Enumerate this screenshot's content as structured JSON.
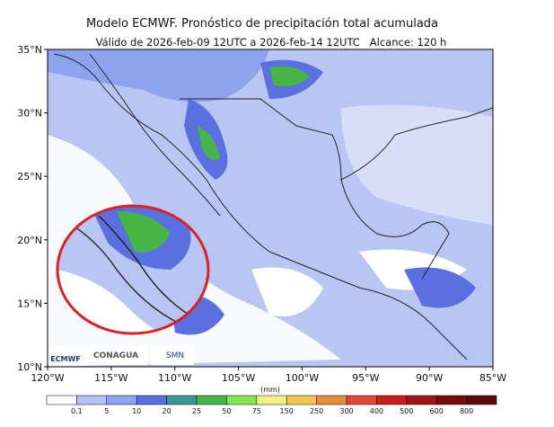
{
  "header": {
    "title": "Modelo ECMWF. Pronóstico de precipitación total acumulada",
    "subtitle": "Válido de 2026-feb-09 12UTC a 2026-feb-14 12UTC   Alcance: 120 h"
  },
  "map": {
    "lat_ticks": [
      "35°N",
      "30°N",
      "25°N",
      "20°N",
      "15°N",
      "10°N"
    ],
    "lon_ticks": [
      "120°W",
      "115°W",
      "110°W",
      "105°W",
      "100°W",
      "95°W",
      "90°W",
      "85°W"
    ]
  },
  "colorbar": {
    "unit": "(mm)",
    "labels": [
      "0.1",
      "5",
      "10",
      "20",
      "25",
      "50",
      "75",
      "150",
      "250",
      "300",
      "400",
      "500",
      "600",
      "800"
    ],
    "colors": [
      "#ffffff",
      "#b4c3f5",
      "#8ea3ee",
      "#5a6fe0",
      "#3c9696",
      "#46b446",
      "#82e650",
      "#f0f08c",
      "#f0c850",
      "#e68c3c",
      "#e64632",
      "#c81e1e",
      "#a01414",
      "#780a0a",
      "#5a0a0a"
    ]
  },
  "logos": [
    "ECMWF",
    "CONAGUA",
    "SMN"
  ]
}
